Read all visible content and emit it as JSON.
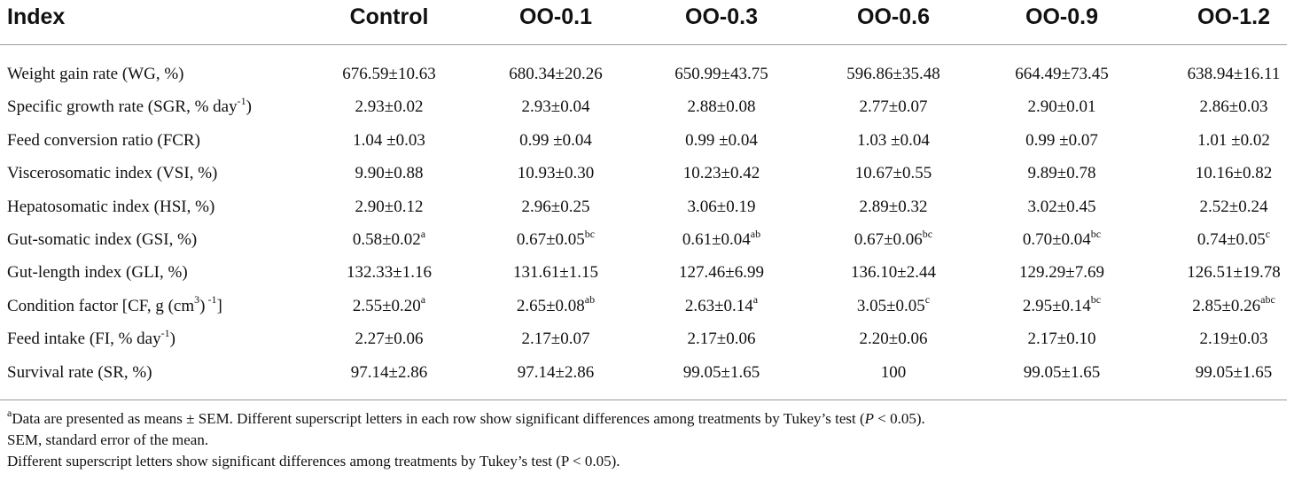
{
  "table": {
    "headers": [
      "Index",
      "Control",
      "OO-0.1",
      "OO-0.3",
      "OO-0.6",
      "OO-0.9",
      "OO-1.2"
    ],
    "rows": [
      {
        "label": "Weight gain rate (WG, %)",
        "cells": [
          {
            "v": "676.59±10.63",
            "s": ""
          },
          {
            "v": "680.34±20.26",
            "s": ""
          },
          {
            "v": "650.99±43.75",
            "s": ""
          },
          {
            "v": "596.86±35.48",
            "s": ""
          },
          {
            "v": "664.49±73.45",
            "s": ""
          },
          {
            "v": "638.94±16.11",
            "s": ""
          }
        ]
      },
      {
        "label": "Specific growth rate (SGR, % day",
        "label_sup": "-1",
        "label_after": ")",
        "cells": [
          {
            "v": "2.93±0.02",
            "s": ""
          },
          {
            "v": "2.93±0.04",
            "s": ""
          },
          {
            "v": "2.88±0.08",
            "s": ""
          },
          {
            "v": "2.77±0.07",
            "s": ""
          },
          {
            "v": "2.90±0.01",
            "s": ""
          },
          {
            "v": "2.86±0.03",
            "s": ""
          }
        ]
      },
      {
        "label": "Feed conversion ratio (FCR)",
        "cells": [
          {
            "v": "1.04 ±0.03",
            "s": ""
          },
          {
            "v": "0.99 ±0.04",
            "s": ""
          },
          {
            "v": "0.99 ±0.04",
            "s": ""
          },
          {
            "v": "1.03 ±0.04",
            "s": ""
          },
          {
            "v": "0.99 ±0.07",
            "s": ""
          },
          {
            "v": "1.01 ±0.02",
            "s": ""
          }
        ]
      },
      {
        "label": "Viscerosomatic index (VSI, %)",
        "cells": [
          {
            "v": "9.90±0.88",
            "s": ""
          },
          {
            "v": "10.93±0.30",
            "s": ""
          },
          {
            "v": "10.23±0.42",
            "s": ""
          },
          {
            "v": "10.67±0.55",
            "s": ""
          },
          {
            "v": "9.89±0.78",
            "s": ""
          },
          {
            "v": "10.16±0.82",
            "s": ""
          }
        ]
      },
      {
        "label": "Hepatosomatic index (HSI, %)",
        "cells": [
          {
            "v": "2.90±0.12",
            "s": ""
          },
          {
            "v": "2.96±0.25",
            "s": ""
          },
          {
            "v": "3.06±0.19",
            "s": ""
          },
          {
            "v": "2.89±0.32",
            "s": ""
          },
          {
            "v": "3.02±0.45",
            "s": ""
          },
          {
            "v": "2.52±0.24",
            "s": ""
          }
        ]
      },
      {
        "label": "Gut-somatic index (GSI, %)",
        "cells": [
          {
            "v": "0.58±0.02",
            "s": "a"
          },
          {
            "v": "0.67±0.05",
            "s": "bc"
          },
          {
            "v": "0.61±0.04",
            "s": "ab"
          },
          {
            "v": "0.67±0.06",
            "s": "bc"
          },
          {
            "v": "0.70±0.04",
            "s": "bc"
          },
          {
            "v": "0.74±0.05",
            "s": "c"
          }
        ]
      },
      {
        "label": "Gut-length index (GLI, %)",
        "cells": [
          {
            "v": "132.33±1.16",
            "s": ""
          },
          {
            "v": "131.61±1.15",
            "s": ""
          },
          {
            "v": "127.46±6.99",
            "s": ""
          },
          {
            "v": "136.10±2.44",
            "s": ""
          },
          {
            "v": "129.29±7.69",
            "s": ""
          },
          {
            "v": "126.51±19.78",
            "s": ""
          }
        ]
      },
      {
        "label": "Condition factor [CF, g (cm",
        "label_sup": "3",
        "label_after": ")",
        "label_sup2": " -1",
        "label_after2": "]",
        "cells": [
          {
            "v": "2.55±0.20",
            "s": "a"
          },
          {
            "v": "2.65±0.08",
            "s": "ab"
          },
          {
            "v": "2.63±0.14",
            "s": "a"
          },
          {
            "v": "3.05±0.05",
            "s": "c"
          },
          {
            "v": "2.95±0.14",
            "s": "bc"
          },
          {
            "v": "2.85±0.26",
            "s": "abc"
          }
        ]
      },
      {
        "label": "Feed intake (FI, % day",
        "label_sup": "-1",
        "label_after": ")",
        "cells": [
          {
            "v": "2.27±0.06",
            "s": ""
          },
          {
            "v": "2.17±0.07",
            "s": ""
          },
          {
            "v": "2.17±0.06",
            "s": ""
          },
          {
            "v": "2.20±0.06",
            "s": ""
          },
          {
            "v": "2.17±0.10",
            "s": ""
          },
          {
            "v": "2.19±0.03",
            "s": ""
          }
        ]
      },
      {
        "label": "Survival rate (SR, %)",
        "cells": [
          {
            "v": "97.14±2.86",
            "s": ""
          },
          {
            "v": "97.14±2.86",
            "s": ""
          },
          {
            "v": "99.05±1.65",
            "s": ""
          },
          {
            "v": "100",
            "s": ""
          },
          {
            "v": "99.05±1.65",
            "s": ""
          },
          {
            "v": "99.05±1.65",
            "s": ""
          }
        ]
      }
    ]
  },
  "footnotes": {
    "note1_sup": "a",
    "note1_text": "Data are presented as means ± SEM. Different superscript letters in each row show significant differences among treatments by Tukey’s test (",
    "note1_p": "P",
    "note1_after": " < 0.05).",
    "note2": "SEM, standard error of the mean.",
    "note3": "Different superscript letters show significant differences among treatments by Tukey’s test (P < 0.05)."
  }
}
